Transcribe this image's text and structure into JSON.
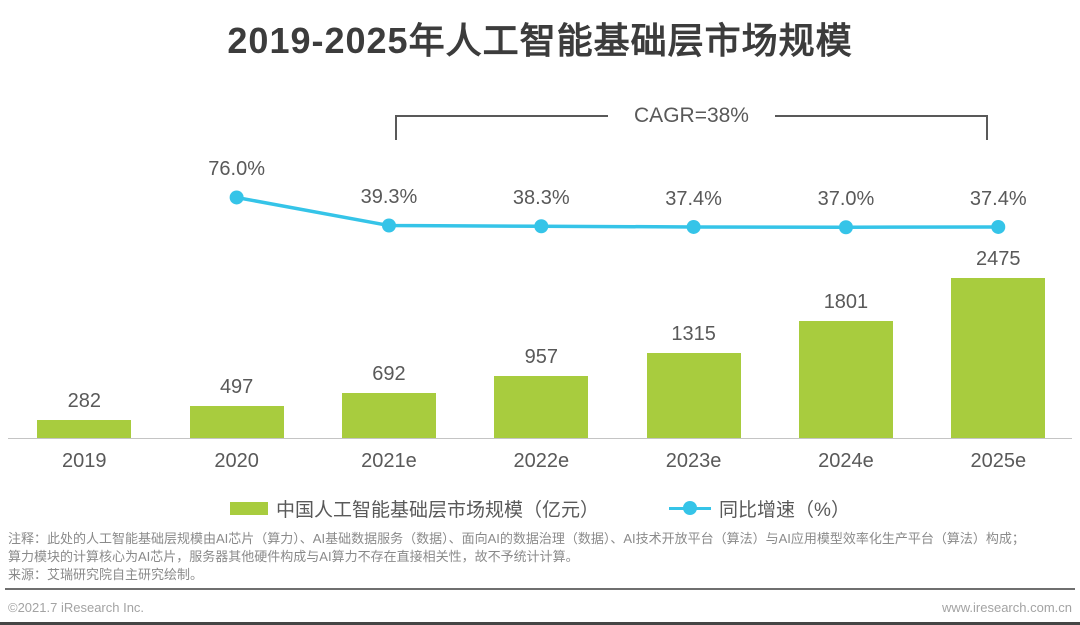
{
  "title": "2019-2025年人工智能基础层市场规模",
  "cagr_label": "CAGR=38%",
  "chart_data": {
    "type": "bar",
    "categories": [
      "2019",
      "2020",
      "2021e",
      "2022e",
      "2023e",
      "2024e",
      "2025e"
    ],
    "series": [
      {
        "name": "中国人工智能基础层市场规模（亿元）",
        "type": "bar",
        "values": [
          282,
          497,
          692,
          957,
          1315,
          1801,
          2475
        ],
        "color": "#a8cc3e"
      },
      {
        "name": "同比增速（%）",
        "type": "line",
        "values": [
          null,
          76.0,
          39.3,
          38.3,
          37.4,
          37.0,
          37.4
        ],
        "labels": [
          "",
          "76.0%",
          "39.3%",
          "38.3%",
          "37.4%",
          "37.0%",
          "37.4%"
        ],
        "color": "#35c4e8"
      }
    ],
    "title": "2019-2025年人工智能基础层市场规模",
    "annotation": "CAGR=38%",
    "xlabel": "",
    "ylabel": "",
    "grid": false,
    "legend_position": "bottom"
  },
  "legend": {
    "bar_label": "中国人工智能基础层市场规模（亿元）",
    "line_label": "同比增速（%）"
  },
  "notes": {
    "line1": "注释：此处的人工智能基础层规模由AI芯片（算力）、AI基础数据服务（数据）、面向AI的数据治理（数据）、AI技术开放平台（算法）与AI应用模型效率化生产平台（算法）构成；",
    "line2": "算力模块的计算核心为AI芯片，服务器其他硬件构成与AI算力不存在直接相关性，故不予统计计算。",
    "source": "来源：艾瑞研究院自主研究绘制。"
  },
  "footer": {
    "left": "©2021.7 iResearch Inc.",
    "right": "www.iresearch.com.cn"
  }
}
